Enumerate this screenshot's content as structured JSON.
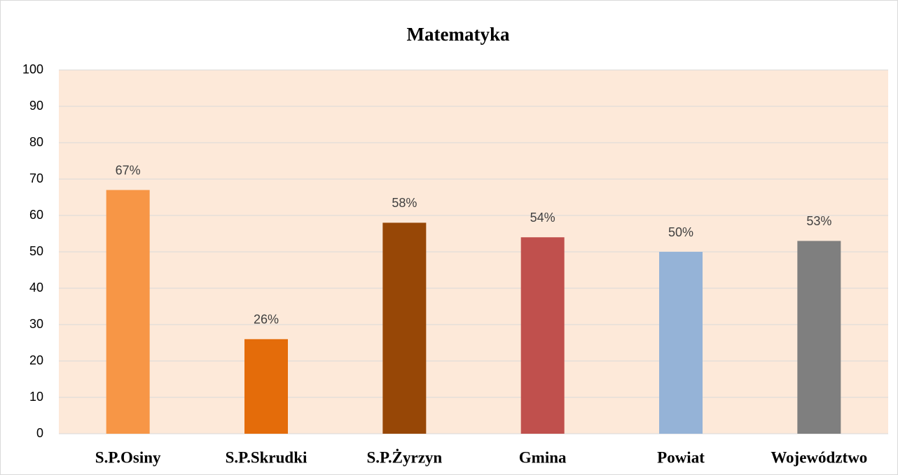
{
  "chart_data": {
    "type": "bar",
    "title": "Matematyka",
    "categories": [
      "S.P.Osiny",
      "S.P.Skrudki",
      "S.P.Żyrzyn",
      "Gmina",
      "Powiat",
      "Województwo"
    ],
    "values": [
      67,
      26,
      58,
      54,
      50,
      53
    ],
    "value_labels": [
      "67%",
      "26%",
      "58%",
      "54%",
      "50%",
      "53%"
    ],
    "colors": [
      "#f79646",
      "#e46c0a",
      "#974706",
      "#c0504d",
      "#95b3d7",
      "#7f7f7f"
    ],
    "ylim": [
      0,
      100
    ],
    "yticks": [
      0,
      10,
      20,
      30,
      40,
      50,
      60,
      70,
      80,
      90,
      100
    ],
    "grid": true
  }
}
